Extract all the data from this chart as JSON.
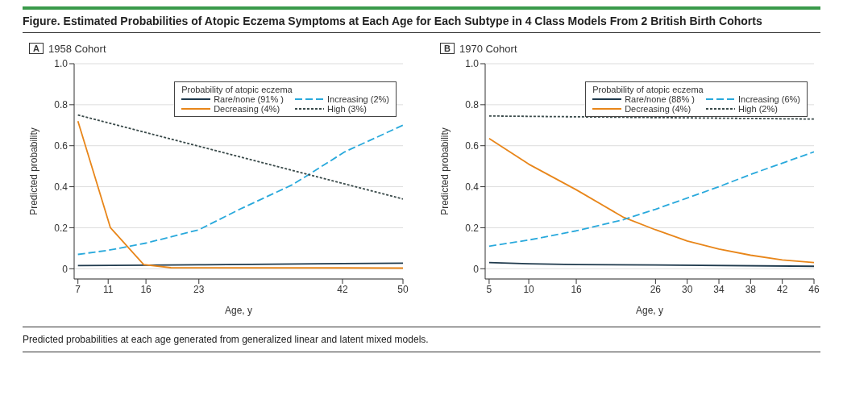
{
  "chart_data": [
    {
      "type": "line",
      "title": "Figure. Estimated Probabilities of Atopic Eczema Symptoms at Each Age for Each Subtype in 4 Class Models From 2 British Birth Cohorts",
      "subtitle": "1958 Cohort",
      "annotations": [
        "A"
      ],
      "xlabel": "Age, y",
      "ylabel": "Predicted probability",
      "legend_title": "Probability of atopic eczema",
      "legend": "top right",
      "grid": "y",
      "xlim": [
        6.5,
        50
      ],
      "xticks": [
        7,
        11,
        16,
        23,
        42,
        50
      ],
      "ylim": [
        -0.05,
        1.0
      ],
      "yticks": [
        0,
        0.2,
        0.4,
        0.6,
        0.8,
        {
          "value": 1.0,
          "label": "1.0"
        }
      ],
      "series": [
        {
          "name": "Rare/none (91% )",
          "color": "#1f3a4d",
          "line_style": "solid",
          "x": [
            7,
            16,
            23,
            42,
            50
          ],
          "values": [
            0.015,
            0.017,
            0.019,
            0.025,
            0.027
          ]
        },
        {
          "name": "Decreasing (4%)",
          "color": "#e8861a",
          "line_style": "solid",
          "x": [
            7,
            11.3,
            15.7,
            19.3,
            42,
            50
          ],
          "values": [
            0.72,
            0.2,
            0.02,
            0.005,
            0.004,
            0.003
          ]
        },
        {
          "name": "Increasing (2%)",
          "color": "#29a9dc",
          "line_style": "dashed",
          "x": [
            7,
            11,
            16,
            23,
            28.4,
            35.4,
            42.3,
            50
          ],
          "values": [
            0.07,
            0.09,
            0.125,
            0.19,
            0.29,
            0.41,
            0.57,
            0.7
          ]
        },
        {
          "name": "High (3%)",
          "color": "#3a4a4a",
          "line_style": "dotted",
          "x": [
            7,
            16,
            23,
            42,
            50
          ],
          "values": [
            0.75,
            0.664,
            0.597,
            0.416,
            0.34
          ]
        }
      ]
    },
    {
      "type": "line",
      "subtitle": "1970 Cohort",
      "annotations": [
        "B",
        "Predicted probabilities at each age generated from generalized linear and latent mixed models."
      ],
      "xlabel": "Age, y",
      "ylabel": "Predicted probability",
      "legend_title": "Probability of atopic eczema",
      "legend": "top right",
      "grid": "y",
      "xlim": [
        4.5,
        46
      ],
      "xticks": [
        5,
        10,
        16,
        26,
        30,
        34,
        38,
        42,
        46
      ],
      "ylim": [
        -0.05,
        1.0
      ],
      "yticks": [
        0,
        0.2,
        0.4,
        0.6,
        0.8,
        {
          "value": 1.0,
          "label": "1.0"
        }
      ],
      "series": [
        {
          "name": "Rare/none (88% )",
          "color": "#1f3a4d",
          "line_style": "solid",
          "x": [
            5,
            10,
            16,
            26,
            46
          ],
          "values": [
            0.03,
            0.024,
            0.02,
            0.018,
            0.012
          ]
        },
        {
          "name": "Decreasing (4%)",
          "color": "#e8861a",
          "line_style": "solid",
          "x": [
            5,
            10,
            16,
            22,
            26,
            30,
            34,
            38,
            42,
            46
          ],
          "values": [
            0.635,
            0.51,
            0.385,
            0.25,
            0.19,
            0.135,
            0.096,
            0.066,
            0.043,
            0.03
          ]
        },
        {
          "name": "Increasing (6%)",
          "color": "#29a9dc",
          "line_style": "dashed",
          "x": [
            5,
            10,
            16,
            22,
            26,
            30,
            34,
            38,
            42,
            46
          ],
          "values": [
            0.11,
            0.14,
            0.185,
            0.24,
            0.29,
            0.345,
            0.4,
            0.46,
            0.515,
            0.57
          ]
        },
        {
          "name": "High (2%)",
          "color": "#3a4a4a",
          "line_style": "dotted",
          "x": [
            5,
            46
          ],
          "values": [
            0.745,
            0.73
          ]
        }
      ]
    }
  ]
}
